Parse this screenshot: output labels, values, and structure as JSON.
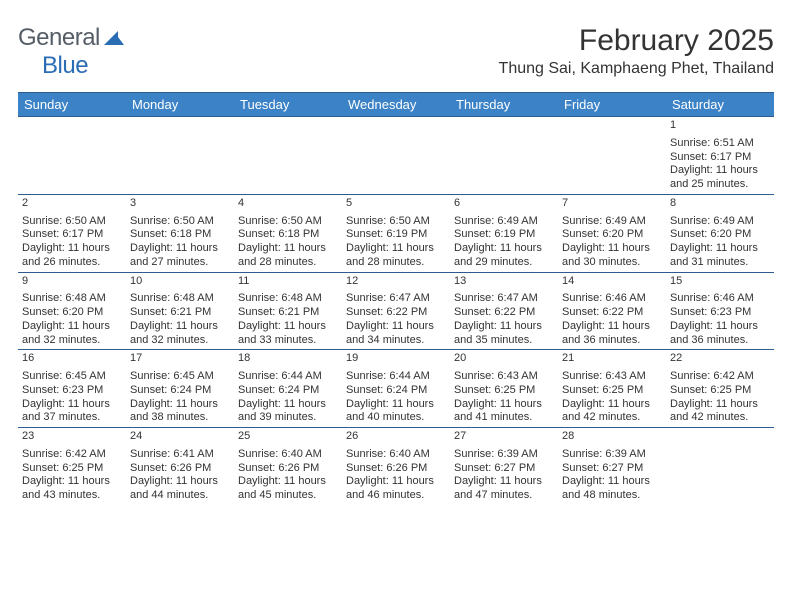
{
  "brand": {
    "name_gray": "General",
    "name_blue": "Blue"
  },
  "title": {
    "month": "February 2025",
    "location": "Thung Sai, Kamphaeng Phet, Thailand"
  },
  "colors": {
    "header_bg": "#3b82c7",
    "header_text": "#ffffff",
    "border": "#2e5c8e",
    "daynum_bg": "#ebebeb",
    "text": "#333333",
    "logo_gray": "#555d66",
    "logo_blue": "#2a6db5"
  },
  "week_days": [
    "Sunday",
    "Monday",
    "Tuesday",
    "Wednesday",
    "Thursday",
    "Friday",
    "Saturday"
  ],
  "weeks": [
    [
      null,
      null,
      null,
      null,
      null,
      null,
      {
        "d": "1",
        "sr": "6:51 AM",
        "ss": "6:17 PM",
        "dl1": "11 hours",
        "dl2": "and 25 minutes."
      }
    ],
    [
      {
        "d": "2",
        "sr": "6:50 AM",
        "ss": "6:17 PM",
        "dl1": "11 hours",
        "dl2": "and 26 minutes."
      },
      {
        "d": "3",
        "sr": "6:50 AM",
        "ss": "6:18 PM",
        "dl1": "11 hours",
        "dl2": "and 27 minutes."
      },
      {
        "d": "4",
        "sr": "6:50 AM",
        "ss": "6:18 PM",
        "dl1": "11 hours",
        "dl2": "and 28 minutes."
      },
      {
        "d": "5",
        "sr": "6:50 AM",
        "ss": "6:19 PM",
        "dl1": "11 hours",
        "dl2": "and 28 minutes."
      },
      {
        "d": "6",
        "sr": "6:49 AM",
        "ss": "6:19 PM",
        "dl1": "11 hours",
        "dl2": "and 29 minutes."
      },
      {
        "d": "7",
        "sr": "6:49 AM",
        "ss": "6:20 PM",
        "dl1": "11 hours",
        "dl2": "and 30 minutes."
      },
      {
        "d": "8",
        "sr": "6:49 AM",
        "ss": "6:20 PM",
        "dl1": "11 hours",
        "dl2": "and 31 minutes."
      }
    ],
    [
      {
        "d": "9",
        "sr": "6:48 AM",
        "ss": "6:20 PM",
        "dl1": "11 hours",
        "dl2": "and 32 minutes."
      },
      {
        "d": "10",
        "sr": "6:48 AM",
        "ss": "6:21 PM",
        "dl1": "11 hours",
        "dl2": "and 32 minutes."
      },
      {
        "d": "11",
        "sr": "6:48 AM",
        "ss": "6:21 PM",
        "dl1": "11 hours",
        "dl2": "and 33 minutes."
      },
      {
        "d": "12",
        "sr": "6:47 AM",
        "ss": "6:22 PM",
        "dl1": "11 hours",
        "dl2": "and 34 minutes."
      },
      {
        "d": "13",
        "sr": "6:47 AM",
        "ss": "6:22 PM",
        "dl1": "11 hours",
        "dl2": "and 35 minutes."
      },
      {
        "d": "14",
        "sr": "6:46 AM",
        "ss": "6:22 PM",
        "dl1": "11 hours",
        "dl2": "and 36 minutes."
      },
      {
        "d": "15",
        "sr": "6:46 AM",
        "ss": "6:23 PM",
        "dl1": "11 hours",
        "dl2": "and 36 minutes."
      }
    ],
    [
      {
        "d": "16",
        "sr": "6:45 AM",
        "ss": "6:23 PM",
        "dl1": "11 hours",
        "dl2": "and 37 minutes."
      },
      {
        "d": "17",
        "sr": "6:45 AM",
        "ss": "6:24 PM",
        "dl1": "11 hours",
        "dl2": "and 38 minutes."
      },
      {
        "d": "18",
        "sr": "6:44 AM",
        "ss": "6:24 PM",
        "dl1": "11 hours",
        "dl2": "and 39 minutes."
      },
      {
        "d": "19",
        "sr": "6:44 AM",
        "ss": "6:24 PM",
        "dl1": "11 hours",
        "dl2": "and 40 minutes."
      },
      {
        "d": "20",
        "sr": "6:43 AM",
        "ss": "6:25 PM",
        "dl1": "11 hours",
        "dl2": "and 41 minutes."
      },
      {
        "d": "21",
        "sr": "6:43 AM",
        "ss": "6:25 PM",
        "dl1": "11 hours",
        "dl2": "and 42 minutes."
      },
      {
        "d": "22",
        "sr": "6:42 AM",
        "ss": "6:25 PM",
        "dl1": "11 hours",
        "dl2": "and 42 minutes."
      }
    ],
    [
      {
        "d": "23",
        "sr": "6:42 AM",
        "ss": "6:25 PM",
        "dl1": "11 hours",
        "dl2": "and 43 minutes."
      },
      {
        "d": "24",
        "sr": "6:41 AM",
        "ss": "6:26 PM",
        "dl1": "11 hours",
        "dl2": "and 44 minutes."
      },
      {
        "d": "25",
        "sr": "6:40 AM",
        "ss": "6:26 PM",
        "dl1": "11 hours",
        "dl2": "and 45 minutes."
      },
      {
        "d": "26",
        "sr": "6:40 AM",
        "ss": "6:26 PM",
        "dl1": "11 hours",
        "dl2": "and 46 minutes."
      },
      {
        "d": "27",
        "sr": "6:39 AM",
        "ss": "6:27 PM",
        "dl1": "11 hours",
        "dl2": "and 47 minutes."
      },
      {
        "d": "28",
        "sr": "6:39 AM",
        "ss": "6:27 PM",
        "dl1": "11 hours",
        "dl2": "and 48 minutes."
      },
      null
    ]
  ],
  "labels": {
    "sunrise": "Sunrise:",
    "sunset": "Sunset:",
    "daylight": "Daylight:"
  }
}
